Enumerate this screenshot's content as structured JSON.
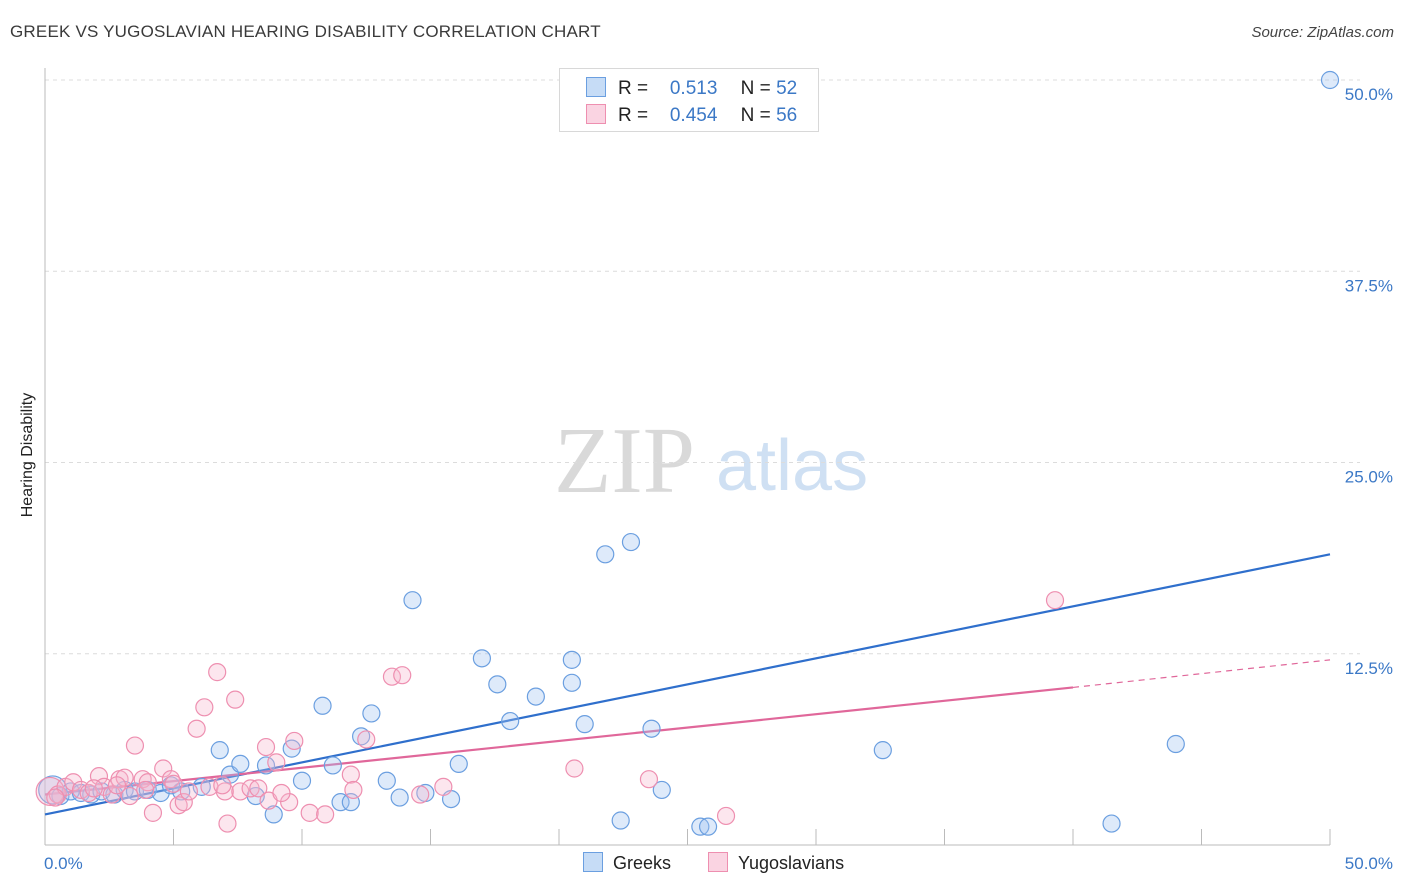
{
  "chart_data": {
    "type": "scatter",
    "title": "GREEK VS YUGOSLAVIAN HEARING DISABILITY CORRELATION CHART",
    "source": "Source: ZipAtlas.com",
    "ylabel": "Hearing Disability",
    "xlim": [
      0,
      50
    ],
    "ylim": [
      0,
      50
    ],
    "x_tick_labels": [
      "0.0%",
      "50.0%"
    ],
    "y_ticks": [
      {
        "value": 12.5,
        "label": "12.5%"
      },
      {
        "value": 25.0,
        "label": "25.0%"
      },
      {
        "value": 37.5,
        "label": "37.5%"
      },
      {
        "value": 50.0,
        "label": "50.0%"
      }
    ],
    "watermark": {
      "zip": "ZIP",
      "atlas": "atlas"
    },
    "series": [
      {
        "name": "Greeks",
        "color": "#6b9fe0",
        "fill": "rgba(160,196,240,0.35)",
        "line_color": "#2f6fcc",
        "r_label": "R =",
        "r_value": "0.513",
        "n_label": "N =",
        "n_value": "52",
        "trend": {
          "x0": 0,
          "y0": 2.0,
          "x1": 50,
          "y1": 19.0
        },
        "points": [
          [
            0.3,
            3.6
          ],
          [
            0.6,
            3.2
          ],
          [
            1.0,
            3.5
          ],
          [
            1.4,
            3.4
          ],
          [
            1.8,
            3.3
          ],
          [
            2.2,
            3.5
          ],
          [
            2.7,
            3.3
          ],
          [
            3.1,
            3.6
          ],
          [
            3.5,
            3.5
          ],
          [
            4.0,
            3.6
          ],
          [
            4.5,
            3.4
          ],
          [
            4.9,
            3.9
          ],
          [
            5.3,
            3.5
          ],
          [
            6.1,
            3.8
          ],
          [
            6.8,
            6.2
          ],
          [
            7.2,
            4.6
          ],
          [
            7.6,
            5.3
          ],
          [
            8.2,
            3.2
          ],
          [
            8.6,
            5.2
          ],
          [
            8.9,
            2.0
          ],
          [
            9.6,
            6.3
          ],
          [
            10.0,
            4.2
          ],
          [
            10.8,
            9.1
          ],
          [
            11.2,
            5.2
          ],
          [
            11.5,
            2.8
          ],
          [
            11.9,
            2.8
          ],
          [
            12.3,
            7.1
          ],
          [
            12.7,
            8.6
          ],
          [
            13.3,
            4.2
          ],
          [
            13.8,
            3.1
          ],
          [
            14.3,
            16.0
          ],
          [
            14.8,
            3.4
          ],
          [
            15.8,
            3.0
          ],
          [
            16.1,
            5.3
          ],
          [
            17.0,
            12.2
          ],
          [
            17.6,
            10.5
          ],
          [
            18.1,
            8.1
          ],
          [
            19.1,
            9.7
          ],
          [
            20.5,
            12.1
          ],
          [
            20.5,
            10.6
          ],
          [
            21.0,
            7.9
          ],
          [
            21.8,
            19.0
          ],
          [
            22.4,
            1.6
          ],
          [
            22.8,
            19.8
          ],
          [
            23.6,
            7.6
          ],
          [
            24.0,
            3.6
          ],
          [
            25.5,
            1.2
          ],
          [
            25.8,
            1.2
          ],
          [
            32.6,
            6.2
          ],
          [
            41.5,
            1.4
          ],
          [
            44.0,
            6.6
          ],
          [
            50.0,
            50.0
          ]
        ]
      },
      {
        "name": "Yugoslavians",
        "color": "#ee8fb0",
        "fill": "rgba(246,184,206,0.35)",
        "line_color": "#e0679a",
        "r_label": "R =",
        "r_value": "0.454",
        "n_label": "N =",
        "n_value": "56",
        "trend": {
          "x0": 0,
          "y0": 3.3,
          "x1": 40,
          "y1": 10.3
        },
        "trend_ext": {
          "x0": 40,
          "y0": 10.3,
          "x1": 50,
          "y1": 12.1
        },
        "points": [
          [
            0.2,
            3.5
          ],
          [
            0.5,
            3.3
          ],
          [
            0.8,
            3.8
          ],
          [
            1.1,
            4.1
          ],
          [
            1.4,
            3.6
          ],
          [
            1.7,
            3.4
          ],
          [
            2.1,
            4.5
          ],
          [
            2.3,
            3.8
          ],
          [
            2.6,
            3.3
          ],
          [
            2.9,
            4.3
          ],
          [
            3.1,
            4.4
          ],
          [
            3.3,
            3.2
          ],
          [
            3.5,
            6.5
          ],
          [
            3.8,
            4.3
          ],
          [
            4.0,
            4.1
          ],
          [
            4.2,
            2.1
          ],
          [
            4.6,
            5.0
          ],
          [
            4.9,
            4.3
          ],
          [
            5.2,
            2.6
          ],
          [
            5.4,
            2.8
          ],
          [
            5.6,
            3.5
          ],
          [
            5.9,
            7.6
          ],
          [
            6.2,
            9.0
          ],
          [
            6.4,
            3.8
          ],
          [
            6.7,
            11.3
          ],
          [
            7.0,
            3.5
          ],
          [
            7.1,
            1.4
          ],
          [
            7.4,
            9.5
          ],
          [
            7.6,
            3.5
          ],
          [
            8.0,
            3.7
          ],
          [
            8.3,
            3.7
          ],
          [
            8.6,
            6.4
          ],
          [
            8.7,
            2.9
          ],
          [
            9.0,
            5.4
          ],
          [
            9.5,
            2.8
          ],
          [
            9.7,
            6.8
          ],
          [
            10.3,
            2.1
          ],
          [
            10.9,
            2.0
          ],
          [
            11.9,
            4.6
          ],
          [
            12.5,
            6.9
          ],
          [
            13.5,
            11.0
          ],
          [
            13.9,
            11.1
          ],
          [
            14.6,
            3.3
          ],
          [
            15.5,
            3.8
          ],
          [
            20.6,
            5.0
          ],
          [
            23.5,
            4.3
          ],
          [
            26.5,
            1.9
          ],
          [
            39.3,
            16.0
          ],
          [
            0.4,
            3.1
          ],
          [
            1.9,
            3.7
          ],
          [
            2.8,
            3.9
          ],
          [
            3.9,
            3.6
          ],
          [
            5.0,
            4.0
          ],
          [
            6.9,
            3.9
          ],
          [
            9.2,
            3.4
          ],
          [
            12.0,
            3.6
          ]
        ]
      }
    ]
  }
}
